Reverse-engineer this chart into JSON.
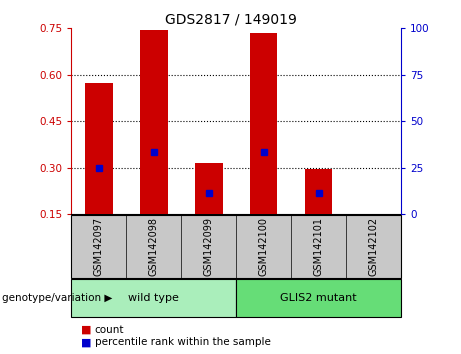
{
  "title": "GDS2817 / 149019",
  "samples": [
    "GSM142097",
    "GSM142098",
    "GSM142099",
    "GSM142100",
    "GSM142101",
    "GSM142102"
  ],
  "bar_tops": [
    0.575,
    0.745,
    0.315,
    0.735,
    0.295,
    0.15
  ],
  "bar_bottoms": [
    0.15,
    0.15,
    0.15,
    0.15,
    0.15,
    0.15
  ],
  "blue_marks": [
    {
      "sample": 0,
      "value": 0.298
    },
    {
      "sample": 1,
      "value": 0.352
    },
    {
      "sample": 2,
      "value": 0.218
    },
    {
      "sample": 3,
      "value": 0.352
    },
    {
      "sample": 4,
      "value": 0.218
    },
    {
      "sample": 5,
      "value": null
    }
  ],
  "ylim": [
    0.15,
    0.75
  ],
  "yticks_left": [
    0.15,
    0.3,
    0.45,
    0.6,
    0.75
  ],
  "yticks_right": [
    0,
    25,
    50,
    75,
    100
  ],
  "bar_color": "#cc0000",
  "blue_color": "#0000cc",
  "groups": [
    {
      "label": "wild type",
      "samples": [
        0,
        1,
        2
      ],
      "color": "#aaeebb"
    },
    {
      "label": "GLIS2 mutant",
      "samples": [
        3,
        4,
        5
      ],
      "color": "#66dd77"
    }
  ],
  "group_label_prefix": "genotype/variation",
  "xlabel_color": "#cc0000",
  "ylabel_right_color": "#0000cc",
  "bar_width": 0.5,
  "tick_area_bg": "#c8c8c8",
  "legend_items": [
    {
      "label": "count",
      "color": "#cc0000"
    },
    {
      "label": "percentile rank within the sample",
      "color": "#0000cc"
    }
  ]
}
